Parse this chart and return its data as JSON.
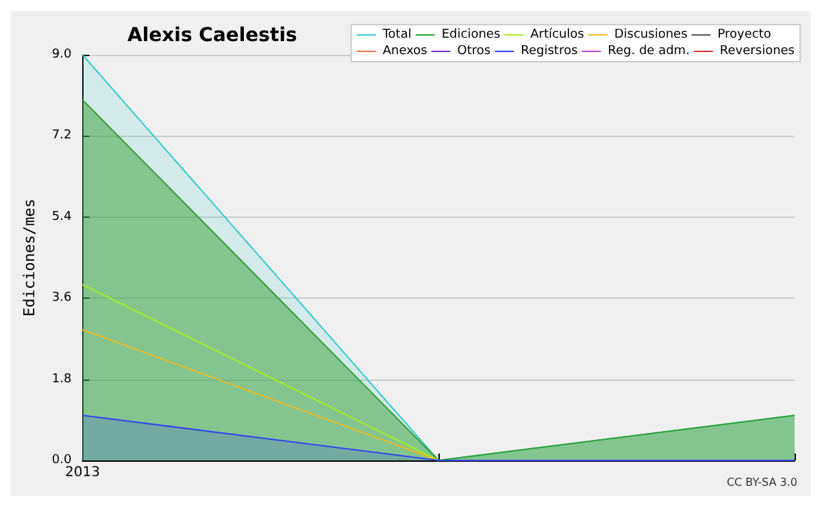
{
  "chart_data": {
    "type": "line",
    "title": "Alexis Caelestis",
    "ylabel": "Ediciones/mes",
    "categories": [
      "2013",
      null,
      null
    ],
    "series": [
      {
        "name": "Total",
        "type": "area",
        "color": "#33cccc",
        "values": [
          9,
          0,
          1
        ]
      },
      {
        "name": "Ediciones",
        "type": "area",
        "color": "#33a033",
        "values": [
          8,
          0,
          1
        ]
      },
      {
        "name": "Artículos",
        "color": "#aaee22",
        "values": [
          3.9,
          0,
          0
        ]
      },
      {
        "name": "Discusiones",
        "color": "#eebb22",
        "values": [
          2.9,
          0,
          0
        ]
      },
      {
        "name": "Proyecto",
        "color": "#555555",
        "values": [
          null,
          null,
          null
        ]
      },
      {
        "name": "Anexos",
        "color": "#ee7744",
        "values": [
          null,
          null,
          null
        ]
      },
      {
        "name": "Otros",
        "color": "#7733cc",
        "values": [
          null,
          null,
          null
        ]
      },
      {
        "name": "Registros",
        "type": "area",
        "color": "#3344ee",
        "values": [
          1,
          0,
          0
        ]
      },
      {
        "name": "Reg. de adm.",
        "color": "#bb44dd",
        "values": [
          null,
          null,
          null
        ]
      },
      {
        "name": "Reversiones",
        "color": "#dd3333",
        "values": [
          null,
          null,
          null
        ]
      }
    ],
    "ylim": [
      0,
      9
    ],
    "yticks": [
      {
        "value": 0,
        "label": "0.0"
      },
      {
        "value": 1.8,
        "label": "1.8"
      },
      {
        "value": 3.6,
        "label": "3.6"
      },
      {
        "value": 5.4,
        "label": "5.4"
      },
      {
        "value": 7.2,
        "label": "7.2"
      },
      {
        "value": 9,
        "label": "9.0"
      }
    ],
    "grid": "y",
    "legend": "top right",
    "marker": "none",
    "line_style": "solid",
    "annotations": [
      "CC BY-SA 3.0"
    ]
  }
}
